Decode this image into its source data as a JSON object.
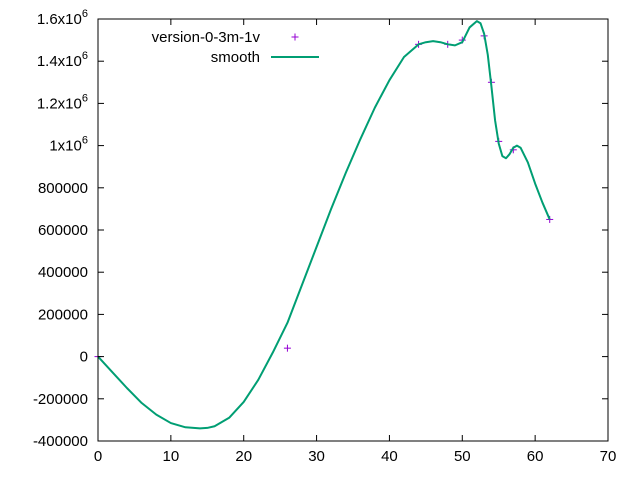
{
  "chart_data": {
    "type": "line",
    "title": "",
    "xlabel": "",
    "ylabel": "",
    "xlim": [
      0,
      70
    ],
    "ylim": [
      -400000,
      1600000
    ],
    "x_ticks": [
      0,
      10,
      20,
      30,
      40,
      50,
      60,
      70
    ],
    "x_tick_labels": [
      "0",
      "10",
      "20",
      "30",
      "40",
      "50",
      "60",
      "70"
    ],
    "y_ticks": [
      -400000,
      -200000,
      0,
      200000,
      400000,
      600000,
      800000,
      1000000,
      1200000,
      1400000,
      1600000
    ],
    "y_tick_labels": [
      {
        "base": "-400000",
        "sup": ""
      },
      {
        "base": "-200000",
        "sup": ""
      },
      {
        "base": "0",
        "sup": ""
      },
      {
        "base": "200000",
        "sup": ""
      },
      {
        "base": "400000",
        "sup": ""
      },
      {
        "base": "600000",
        "sup": ""
      },
      {
        "base": "800000",
        "sup": ""
      },
      {
        "base": "1x10",
        "sup": "6"
      },
      {
        "base": "1.2x10",
        "sup": "6"
      },
      {
        "base": "1.4x10",
        "sup": "6"
      },
      {
        "base": "1.6x10",
        "sup": "6"
      }
    ],
    "grid": false,
    "legend_position": "top-left",
    "series": [
      {
        "name": "version-0-3m-1v",
        "style": "points",
        "marker": "+",
        "color": "#9400d3",
        "x": [
          0,
          26,
          44,
          48,
          50,
          53,
          54,
          55,
          57,
          62
        ],
        "y": [
          0,
          40000,
          1480000,
          1480000,
          1500000,
          1520000,
          1300000,
          1020000,
          980000,
          650000
        ]
      },
      {
        "name": "smooth",
        "style": "line",
        "color": "#009e73",
        "x": [
          0,
          2,
          4,
          6,
          8,
          10,
          12,
          14,
          15,
          16,
          18,
          20,
          22,
          24,
          26,
          28,
          30,
          32,
          34,
          36,
          38,
          40,
          42,
          44,
          45,
          46,
          47,
          48,
          49,
          50,
          51,
          52,
          52.5,
          53,
          53.5,
          54,
          54.5,
          55,
          55.5,
          56,
          56.5,
          57,
          57.5,
          58,
          59,
          60,
          61,
          62
        ],
        "y": [
          0,
          -75000,
          -150000,
          -220000,
          -275000,
          -315000,
          -335000,
          -340000,
          -338000,
          -330000,
          -290000,
          -215000,
          -110000,
          20000,
          160000,
          340000,
          520000,
          700000,
          870000,
          1030000,
          1180000,
          1310000,
          1420000,
          1480000,
          1490000,
          1495000,
          1490000,
          1480000,
          1475000,
          1490000,
          1560000,
          1590000,
          1580000,
          1530000,
          1430000,
          1280000,
          1120000,
          1010000,
          950000,
          940000,
          960000,
          990000,
          1000000,
          990000,
          920000,
          820000,
          730000,
          650000
        ]
      }
    ]
  }
}
